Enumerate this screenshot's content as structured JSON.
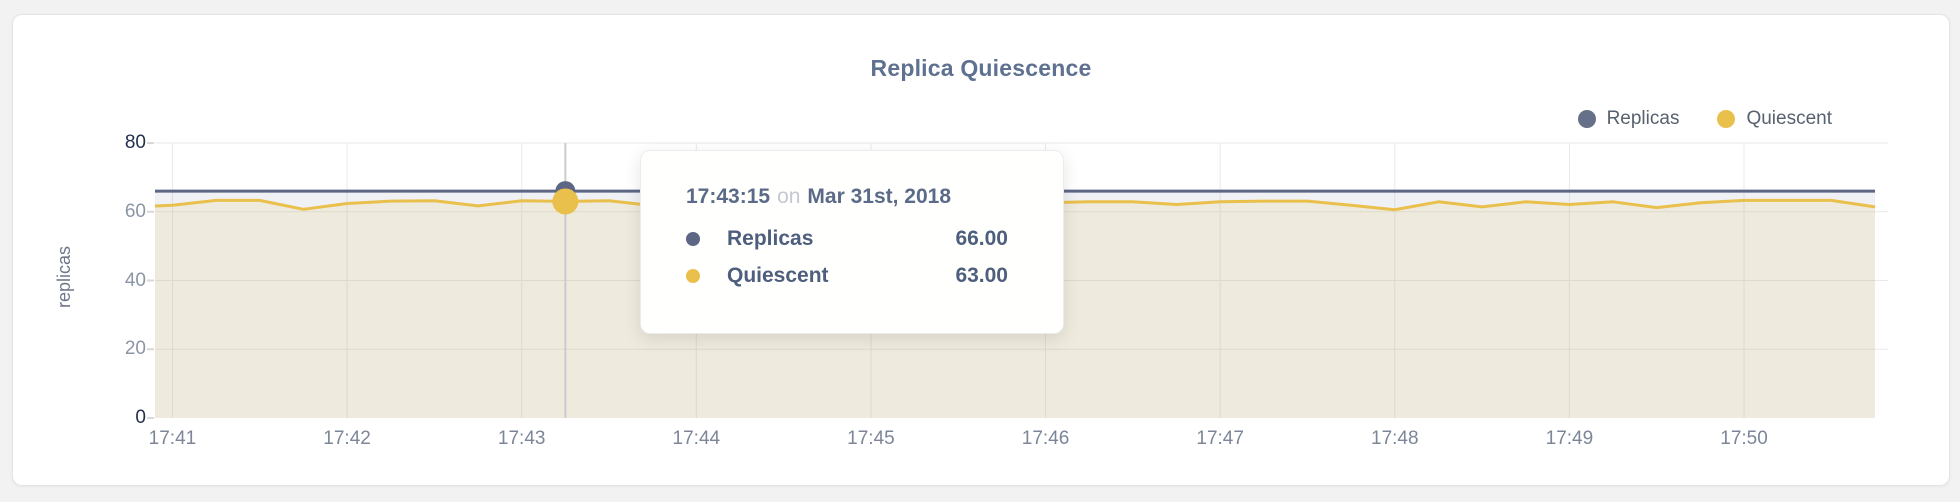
{
  "page": {
    "background": "#f2f2f3",
    "card_background": "#ffffff",
    "card_border": "#e4e5e7"
  },
  "header": {
    "title": "Replica Quiescence",
    "title_color": "#5e7190"
  },
  "legend": {
    "items": [
      {
        "label": "Replicas",
        "color": "#667089"
      },
      {
        "label": "Quiescent",
        "color": "#e9c04b"
      }
    ]
  },
  "tooltip": {
    "time": "17:43:15",
    "conjunction": "on",
    "date": "Mar 31st, 2018",
    "rows": [
      {
        "label": "Replicas",
        "value": "66.00",
        "color": "#5d6783"
      },
      {
        "label": "Quiescent",
        "value": "63.00",
        "color": "#e9c04b"
      }
    ]
  },
  "chart_data": {
    "type": "line",
    "title": "Replica Quiescence",
    "xlabel": "",
    "ylabel": "replicas",
    "ylim": [
      0,
      80
    ],
    "y_ticks": [
      0,
      20,
      40,
      60,
      80
    ],
    "x_ticks": [
      "17:41",
      "17:42",
      "17:43",
      "17:44",
      "17:45",
      "17:46",
      "17:47",
      "17:48",
      "17:49",
      "17:50"
    ],
    "xlim": [
      "17:40:54",
      "17:50:45"
    ],
    "x_start": "17:40:45",
    "x_step_seconds": 15,
    "grid": true,
    "legend_position": "top-right",
    "grid_color": "#e9e9e9",
    "crosshair_color": "#c9cbce",
    "series": [
      {
        "name": "Replicas",
        "color": "#5d6783",
        "fill": "rgba(93,103,132,0.09)",
        "hover_dot_radius": 10,
        "values": [
          66,
          66,
          66,
          66,
          66,
          66,
          66,
          66,
          66,
          66,
          66,
          66,
          66,
          66,
          66,
          66,
          66,
          66,
          66,
          66,
          66,
          66,
          66,
          66,
          66,
          66,
          66,
          66,
          66,
          66,
          66,
          66,
          66,
          66,
          66,
          66,
          66,
          66,
          66,
          66,
          66
        ]
      },
      {
        "name": "Quiescent",
        "color": "#e9c04b",
        "fill": "rgba(231,188,58,0.12)",
        "hover_dot_radius": 13,
        "values": [
          61.3,
          61.9,
          63.3,
          63.3,
          60.7,
          62.4,
          63.1,
          63.2,
          61.7,
          63.2,
          63.0,
          63.2,
          61.8,
          62.6,
          62.9,
          62.9,
          62.7,
          62.9,
          63.0,
          62.9,
          61.3,
          62.6,
          62.9,
          62.9,
          62.1,
          62.9,
          63.1,
          63.1,
          61.9,
          60.6,
          62.9,
          61.4,
          62.9,
          62.1,
          62.9,
          61.2,
          62.6,
          63.3,
          63.3,
          63.3,
          61.4
        ]
      }
    ],
    "hover": {
      "index": 10,
      "time": "17:43:15",
      "values": [
        66.0,
        63.0
      ]
    }
  }
}
